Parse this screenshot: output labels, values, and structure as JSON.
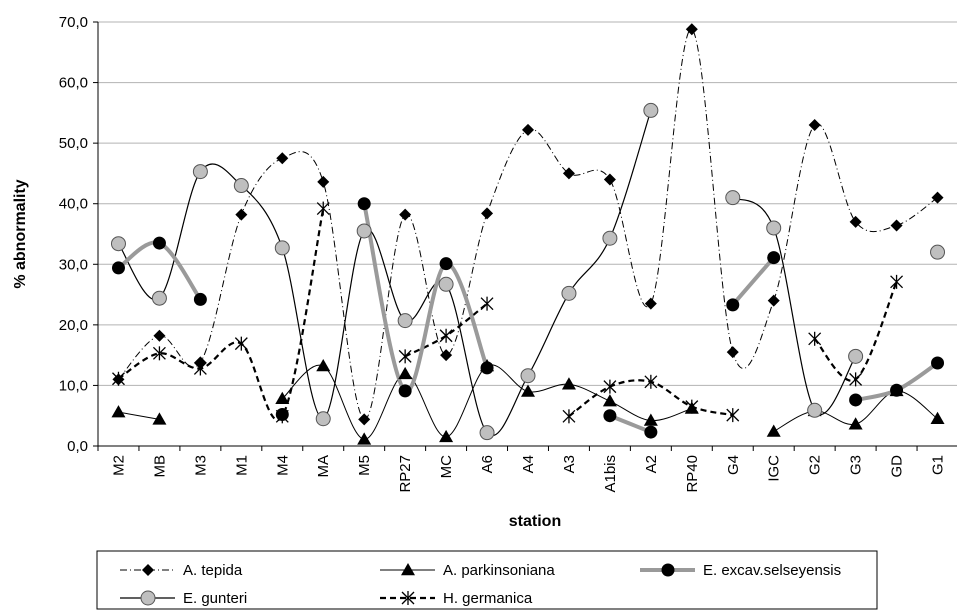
{
  "chart_data": {
    "type": "line",
    "xlabel": "station",
    "ylabel": "% abnormality",
    "ylim": [
      0,
      70
    ],
    "y_ticks": [
      "0,0",
      "10,0",
      "20,0",
      "30,0",
      "40,0",
      "50,0",
      "60,0",
      "70,0"
    ],
    "grid": "horizontal",
    "legend_position": "bottom",
    "categories": [
      "M2",
      "MB",
      "M3",
      "M1",
      "M4",
      "MA",
      "M5",
      "RP27",
      "MC",
      "A6",
      "A4",
      "A3",
      "A1bis",
      "A2",
      "RP40",
      "G4",
      "IGC",
      "G2",
      "G3",
      "GD",
      "G1"
    ],
    "series": [
      {
        "name": "A. tepida",
        "color": "#000000",
        "line": "dash-dot",
        "marker": "diamond",
        "values": [
          11.0,
          18.2,
          13.8,
          38.2,
          47.5,
          43.6,
          4.4,
          38.2,
          15.0,
          38.4,
          52.2,
          45.0,
          44.0,
          23.5,
          68.8,
          15.5,
          24.0,
          53.0,
          37.0,
          36.4,
          41.0
        ]
      },
      {
        "name": "A. parkinsoniana",
        "color": "#000000",
        "line": "solid-thin",
        "marker": "triangle",
        "values": [
          5.6,
          4.4,
          null,
          null,
          7.8,
          13.2,
          1.1,
          11.9,
          1.5,
          13.2,
          9.0,
          10.2,
          7.4,
          4.2,
          6.2,
          null,
          2.4,
          5.8,
          3.6,
          9.1,
          4.5
        ]
      },
      {
        "name": "E. excav.selseyensis",
        "color": "#000000",
        "line": "thick-gray",
        "marker": "circle-black",
        "values": [
          29.4,
          33.5,
          24.2,
          null,
          5.2,
          null,
          40.0,
          9.1,
          30.1,
          12.9,
          null,
          null,
          5.0,
          2.3,
          null,
          23.3,
          31.1,
          null,
          7.6,
          9.2,
          13.7
        ]
      },
      {
        "name": "E. gunteri",
        "color": "#999999",
        "line": "solid",
        "marker": "circle-gray",
        "values": [
          33.4,
          24.4,
          45.3,
          43.0,
          32.7,
          4.5,
          35.5,
          20.7,
          26.7,
          2.2,
          11.6,
          25.2,
          34.3,
          55.4,
          null,
          41.0,
          36.0,
          5.9,
          14.8,
          null,
          32.0
        ]
      },
      {
        "name": "H. germanica",
        "color": "#000000",
        "line": "dashed-bold",
        "marker": "asterisk",
        "values": [
          11.1,
          15.3,
          12.8,
          16.9,
          4.9,
          39.2,
          null,
          14.8,
          18.2,
          23.5,
          null,
          4.9,
          9.8,
          10.6,
          6.5,
          5.1,
          null,
          17.7,
          11.0,
          27.1,
          null
        ]
      }
    ]
  }
}
